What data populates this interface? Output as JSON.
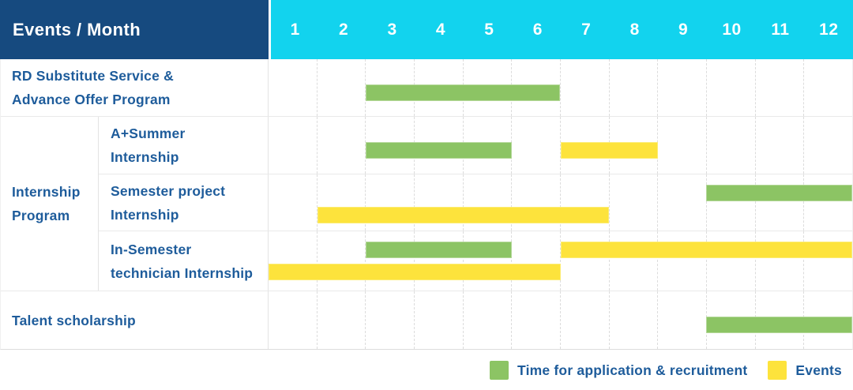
{
  "header": {
    "title": "Events / Month"
  },
  "months": [
    "1",
    "2",
    "3",
    "4",
    "5",
    "6",
    "7",
    "8",
    "9",
    "10",
    "11",
    "12"
  ],
  "group": {
    "label": "Internship\nProgram"
  },
  "rows": [
    {
      "label": "RD Substitute Service &\nAdvance Offer Program",
      "bars": [
        {
          "type": "application",
          "start": 3,
          "end": 6,
          "lane": "mid"
        }
      ]
    },
    {
      "label": "A+Summer\nInternship",
      "bars": [
        {
          "type": "application",
          "start": 3,
          "end": 5,
          "lane": "mid"
        },
        {
          "type": "event",
          "start": 7,
          "end": 8,
          "lane": "mid"
        }
      ]
    },
    {
      "label": "Semester project\nInternship",
      "bars": [
        {
          "type": "application",
          "start": 10,
          "end": 12,
          "lane": "top"
        },
        {
          "type": "event",
          "start": 2,
          "end": 7,
          "lane": "bottom"
        }
      ]
    },
    {
      "label": "In-Semester\ntechnician Internship",
      "bars": [
        {
          "type": "application",
          "start": 3,
          "end": 5,
          "lane": "top"
        },
        {
          "type": "event",
          "start": 7,
          "end": 12,
          "lane": "top"
        },
        {
          "type": "event",
          "start": 1,
          "end": 6,
          "lane": "bottom"
        }
      ]
    },
    {
      "label": "Talent scholarship",
      "bars": [
        {
          "type": "application",
          "start": 10,
          "end": 12,
          "lane": "mid"
        }
      ]
    }
  ],
  "legend": {
    "items": [
      {
        "type": "application",
        "label": "Time for application & recruitment"
      },
      {
        "type": "event",
        "label": "Events"
      }
    ]
  },
  "colors": {
    "navy": "#164A7F",
    "cyan": "#12D3EE",
    "green": "#8CC464",
    "yellow": "#FDE33C",
    "textblue": "#1E5C9B",
    "line": "#e9e9e9",
    "line2": "#e3e3e3"
  },
  "chart_data": {
    "type": "table",
    "title": "Events / Month",
    "x_categories": [
      "1",
      "2",
      "3",
      "4",
      "5",
      "6",
      "7",
      "8",
      "9",
      "10",
      "11",
      "12"
    ],
    "legend_entries": [
      "Time for application & recruitment",
      "Events"
    ],
    "rows": [
      {
        "event": "RD Substitute Service & Advance Offer Program",
        "application_recruitment_month_spans": [
          [
            3,
            6
          ]
        ],
        "events_month_spans": []
      },
      {
        "event": "Internship Program - A+Summer Internship",
        "application_recruitment_month_spans": [
          [
            3,
            5
          ]
        ],
        "events_month_spans": [
          [
            7,
            8
          ]
        ]
      },
      {
        "event": "Internship Program - Semester project Internship",
        "application_recruitment_month_spans": [
          [
            10,
            12
          ]
        ],
        "events_month_spans": [
          [
            2,
            7
          ]
        ]
      },
      {
        "event": "Internship Program - In-Semester technician Internship",
        "application_recruitment_month_spans": [
          [
            3,
            5
          ]
        ],
        "events_month_spans": [
          [
            7,
            12
          ],
          [
            1,
            6
          ]
        ]
      },
      {
        "event": "Talent scholarship",
        "application_recruitment_month_spans": [
          [
            10,
            12
          ]
        ],
        "events_month_spans": []
      }
    ],
    "layout": {
      "grid": "dashed vertical month lines",
      "legend_position": "bottom-right"
    }
  }
}
